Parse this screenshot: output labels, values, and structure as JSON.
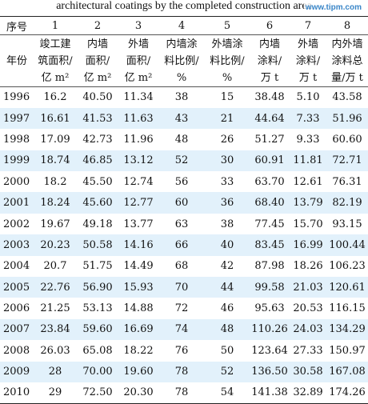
{
  "caption": "architectural coatings by the completed construction area",
  "watermark": "www.tipm.com",
  "header": {
    "numbers": [
      "序号",
      "1",
      "2",
      "3",
      "4",
      "5",
      "6",
      "7",
      "8"
    ],
    "titles": [
      [
        "年份"
      ],
      [
        "竣工建",
        "筑面积/",
        "亿 m²"
      ],
      [
        "内墙",
        "面积/",
        "亿 m²"
      ],
      [
        "外墙",
        "面积/",
        "亿 m²"
      ],
      [
        "内墙涂",
        "料比例/",
        "%"
      ],
      [
        "外墙涂",
        "料比例/",
        "%"
      ],
      [
        "内墙",
        "涂料/",
        "万 t"
      ],
      [
        "外墙",
        "涂料/",
        "万 t"
      ],
      [
        "内外墙",
        "涂料总",
        "量/万 t"
      ]
    ]
  },
  "rows": [
    [
      "1996",
      "16.2",
      "40.50",
      "11.34",
      "38",
      "15",
      "38.48",
      "5.10",
      "43.58"
    ],
    [
      "1997",
      "16.61",
      "41.53",
      "11.63",
      "43",
      "21",
      "44.64",
      "7.33",
      "51.96"
    ],
    [
      "1998",
      "17.09",
      "42.73",
      "11.96",
      "48",
      "26",
      "51.27",
      "9.33",
      "60.60"
    ],
    [
      "1999",
      "18.74",
      "46.85",
      "13.12",
      "52",
      "30",
      "60.91",
      "11.81",
      "72.71"
    ],
    [
      "2000",
      "18.2",
      "45.50",
      "12.74",
      "56",
      "33",
      "63.70",
      "12.61",
      "76.31"
    ],
    [
      "2001",
      "18.24",
      "45.60",
      "12.77",
      "60",
      "36",
      "68.40",
      "13.79",
      "82.19"
    ],
    [
      "2002",
      "19.67",
      "49.18",
      "13.77",
      "63",
      "38",
      "77.45",
      "15.70",
      "93.15"
    ],
    [
      "2003",
      "20.23",
      "50.58",
      "14.16",
      "66",
      "40",
      "83.45",
      "16.99",
      "100.44"
    ],
    [
      "2004",
      "20.7",
      "51.75",
      "14.49",
      "68",
      "42",
      "87.98",
      "18.26",
      "106.23"
    ],
    [
      "2005",
      "22.76",
      "56.90",
      "15.93",
      "70",
      "44",
      "99.58",
      "21.03",
      "120.61"
    ],
    [
      "2006",
      "21.25",
      "53.13",
      "14.88",
      "72",
      "46",
      "95.63",
      "20.53",
      "116.15"
    ],
    [
      "2007",
      "23.84",
      "59.60",
      "16.69",
      "74",
      "48",
      "110.26",
      "24.03",
      "134.29"
    ],
    [
      "2008",
      "26.03",
      "65.08",
      "18.22",
      "76",
      "50",
      "123.64",
      "27.33",
      "150.97"
    ],
    [
      "2009",
      "28",
      "70.00",
      "19.60",
      "78",
      "52",
      "136.50",
      "30.58",
      "167.08"
    ],
    [
      "2010",
      "29",
      "72.50",
      "20.30",
      "78",
      "54",
      "141.38",
      "32.89",
      "174.26"
    ]
  ]
}
